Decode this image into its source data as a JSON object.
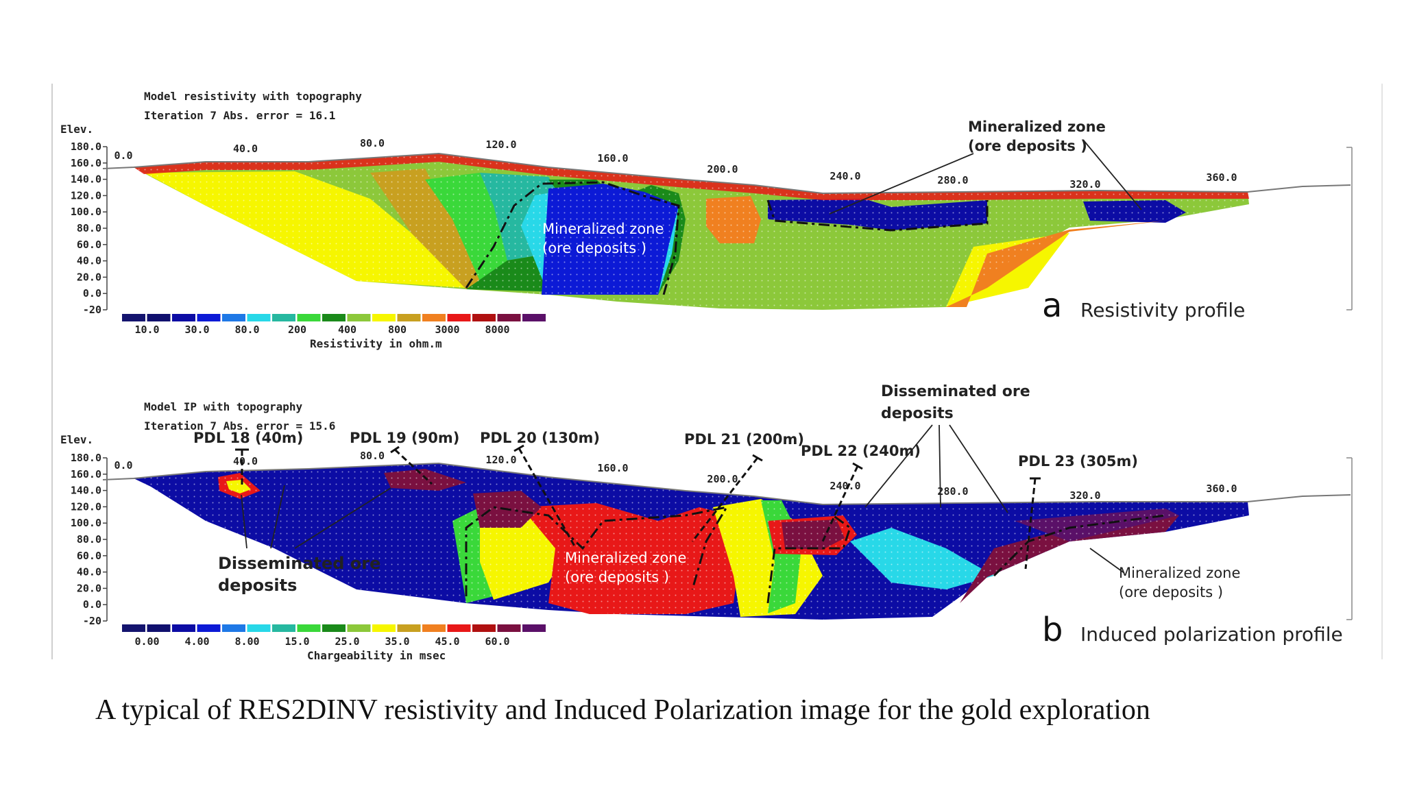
{
  "panel_a": {
    "header_line1": "Model resistivity with topography",
    "header_line2": "Iteration 7 Abs. error = 16.1",
    "elev_label": "Elev.",
    "y_ticks": [
      "180.0",
      "160.0",
      "140.0",
      "120.0",
      "100.0",
      "80.0",
      "60.0",
      "40.0",
      "20.0",
      "0.0",
      "-20"
    ],
    "x_ticks": [
      "0.0",
      "40.0",
      "80.0",
      "120.0",
      "160.0",
      "200.0",
      "240.0",
      "280.0",
      "320.0",
      "360.0"
    ],
    "legend_values": [
      "10.0",
      "30.0",
      "80.0",
      "200",
      "400",
      "800",
      "3000",
      "8000"
    ],
    "legend_title": "Resistivity in ohm.m",
    "panel_letter": "a",
    "panel_title": "Resistivity profile",
    "annotation_inside_line1": "Mineralized zone",
    "annotation_inside_line2": "(ore deposits )",
    "annotation_callout_line1": "Mineralized zone",
    "annotation_callout_line2": "(ore deposits )"
  },
  "panel_b": {
    "header_line1": "Model IP with topography",
    "header_line2": "Iteration 7 Abs. error = 15.6",
    "elev_label": "Elev.",
    "y_ticks": [
      "180.0",
      "160.0",
      "140.0",
      "120.0",
      "100.0",
      "80.0",
      "60.0",
      "40.0",
      "20.0",
      "0.0",
      "-20"
    ],
    "x_ticks": [
      "0.0",
      "40.0",
      "80.0",
      "120.0",
      "160.0",
      "200.0",
      "240.0",
      "280.0",
      "320.0",
      "360.0"
    ],
    "legend_values": [
      "0.00",
      "4.00",
      "8.00",
      "15.0",
      "25.0",
      "35.0",
      "45.0",
      "60.0"
    ],
    "legend_title": "Chargeability in msec",
    "panel_letter": "b",
    "panel_title": "Induced polarization profile",
    "drillholes": [
      "PDL 18 (40m)",
      "PDL 19 (90m)",
      "PDL 20 (130m)",
      "PDL 21 (200m)",
      "PDL 22 (240m)",
      "PDL 23 (305m)"
    ],
    "disseminated_left_line1": "Disseminated ore",
    "disseminated_left_line2": "deposits",
    "disseminated_top_line1": "Disseminated ore",
    "disseminated_top_line2": "deposits",
    "zone_center_line1": "Mineralized zone",
    "zone_center_line2": "(ore deposits )",
    "zone_right_line1": "Mineralized zone",
    "zone_right_line2": "(ore deposits )"
  },
  "colors": {
    "scale": [
      "#14146e",
      "#10106e",
      "#0c0ca4",
      "#0c1ad6",
      "#1e78e6",
      "#28d8e8",
      "#26b8a0",
      "#3ad83a",
      "#1a8a1a",
      "#8cc83a",
      "#f6f600",
      "#c8a020",
      "#f08020",
      "#e81818",
      "#b01010",
      "#7a1040",
      "#5a1068"
    ]
  },
  "caption": "A typical of RES2DINV resistivity and Induced Polarization image for the gold exploration"
}
